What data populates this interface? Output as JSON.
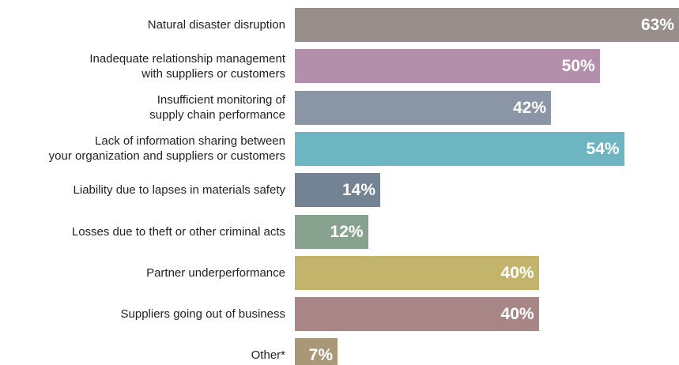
{
  "chart_data": {
    "type": "bar",
    "orientation": "horizontal",
    "categories": [
      "Natural disaster disruption",
      "Inadequate relationship management\nwith suppliers or customers",
      "Insufficient monitoring of\nsupply chain performance",
      "Lack of information sharing between\nyour organization and suppliers or customers",
      "Liability due to lapses in materials safety",
      "Losses due to theft or other criminal acts",
      "Partner underperformance",
      "Suppliers going out of business",
      "Other*"
    ],
    "values": [
      63,
      50,
      42,
      54,
      14,
      12,
      40,
      40,
      7
    ],
    "value_labels": [
      "63%",
      "50%",
      "42%",
      "54%",
      "14%",
      "12%",
      "40%",
      "40%",
      "7%"
    ],
    "colors": [
      "#978e8c",
      "#b48fab",
      "#8a96a5",
      "#6db6c1",
      "#738394",
      "#87a390",
      "#c2b46b",
      "#a88686",
      "#a89878"
    ]
  }
}
